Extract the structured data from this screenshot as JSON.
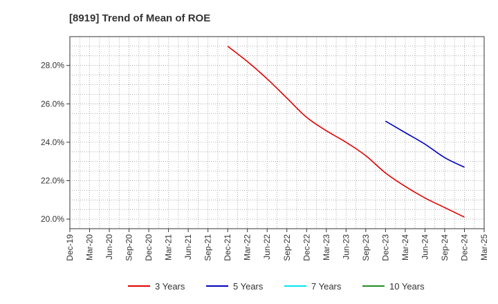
{
  "chart_data": {
    "type": "line",
    "title": "[8919]  Trend of Mean of ROE",
    "xlabel": "",
    "ylabel": "",
    "categories": [
      "Dec-19",
      "Mar-20",
      "Jun-20",
      "Sep-20",
      "Dec-20",
      "Mar-21",
      "Jun-21",
      "Sep-21",
      "Dec-21",
      "Mar-22",
      "Jun-22",
      "Sep-22",
      "Dec-22",
      "Mar-23",
      "Jun-23",
      "Sep-23",
      "Dec-23",
      "Mar-24",
      "Jun-24",
      "Sep-24",
      "Dec-24",
      "Mar-25"
    ],
    "x_tick_labels": [
      "Dec-19",
      "Mar-20",
      "Jun-20",
      "Sep-20",
      "Dec-20",
      "Mar-21",
      "Jun-21",
      "Sep-21",
      "Dec-21",
      "Mar-22",
      "Jun-22",
      "Sep-22",
      "Dec-22",
      "Mar-23",
      "Jun-23",
      "Sep-23",
      "Dec-23",
      "Mar-24",
      "Jun-24",
      "Sep-24",
      "Dec-24",
      "Mar-25"
    ],
    "y_tick_labels": [
      "20.0%",
      "22.0%",
      "24.0%",
      "26.0%",
      "28.0%"
    ],
    "y_ticks": [
      20,
      22,
      24,
      26,
      28
    ],
    "ylim": [
      19.5,
      29.5
    ],
    "grid": true,
    "legend_position": "bottom",
    "series": [
      {
        "name": "3 Years",
        "color": "#e00000",
        "values": [
          null,
          null,
          null,
          null,
          null,
          null,
          null,
          null,
          29.0,
          28.2,
          27.3,
          26.3,
          25.3,
          24.6,
          24.0,
          23.3,
          22.4,
          21.7,
          21.1,
          20.6,
          20.1,
          null
        ]
      },
      {
        "name": "5 Years",
        "color": "#0000c0",
        "values": [
          null,
          null,
          null,
          null,
          null,
          null,
          null,
          null,
          null,
          null,
          null,
          null,
          null,
          null,
          null,
          null,
          25.1,
          24.5,
          23.9,
          23.2,
          22.7,
          null
        ]
      },
      {
        "name": "7 Years",
        "color": "#00e5ee",
        "values": [
          null,
          null,
          null,
          null,
          null,
          null,
          null,
          null,
          null,
          null,
          null,
          null,
          null,
          null,
          null,
          null,
          null,
          null,
          null,
          null,
          null,
          null
        ]
      },
      {
        "name": "10 Years",
        "color": "#228b22",
        "values": [
          null,
          null,
          null,
          null,
          null,
          null,
          null,
          null,
          null,
          null,
          null,
          null,
          null,
          null,
          null,
          null,
          null,
          null,
          null,
          null,
          null,
          null
        ]
      }
    ]
  }
}
